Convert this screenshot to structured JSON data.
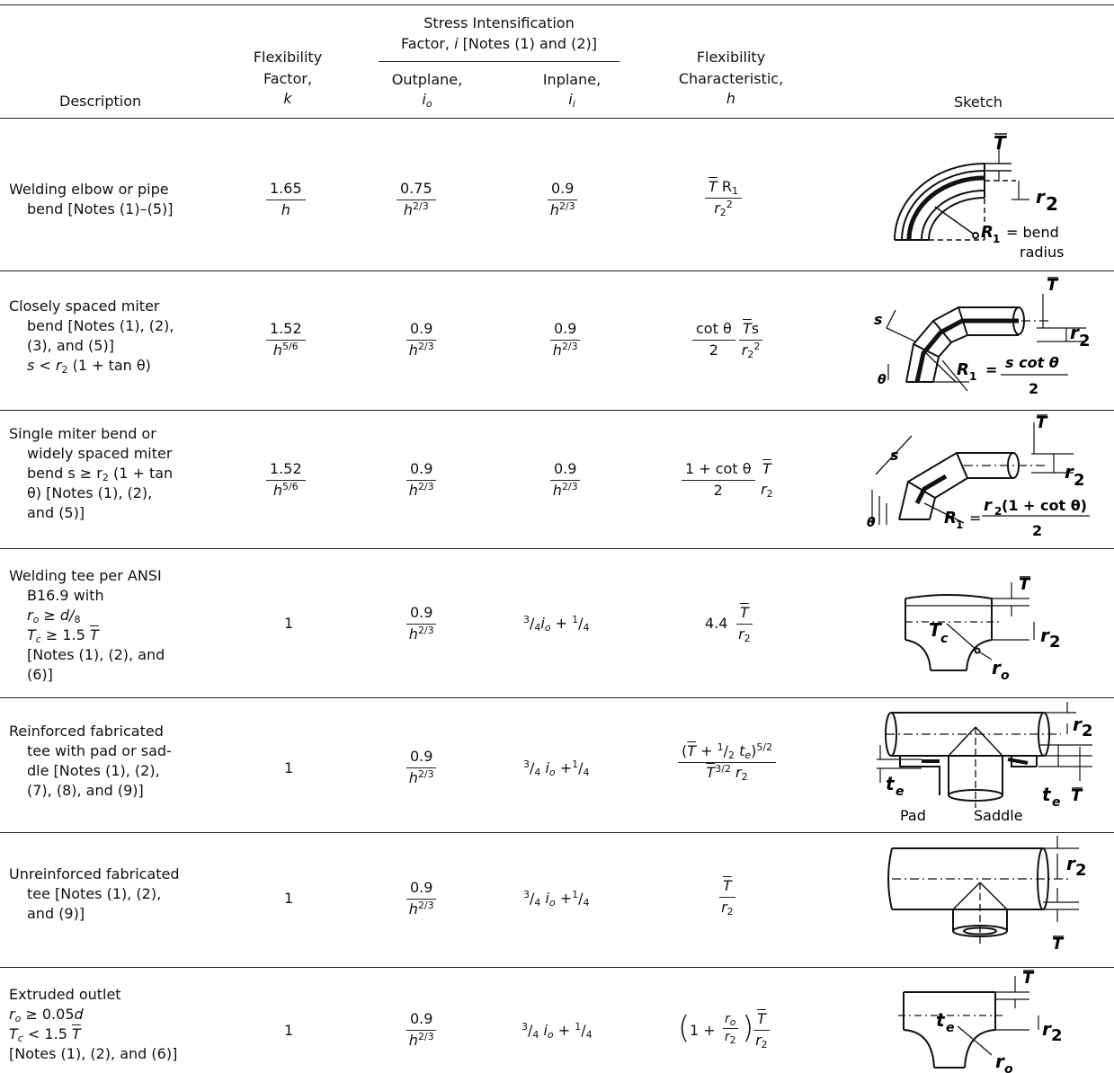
{
  "headers": {
    "description": "Description",
    "flex_factor_l1": "Flexibility",
    "flex_factor_l2": "Factor,",
    "flex_factor_sym": "k",
    "sif_l1": "Stress Intensification",
    "sif_l2_pre": "Factor, ",
    "sif_l2_sym": "i",
    "sif_l2_post": " [Notes (1) and (2)]",
    "outplane": "Outplane,",
    "outplane_sym": "i",
    "outplane_sub": "o",
    "inplane": "Inplane,",
    "inplane_sym": "i",
    "inplane_sub": "i",
    "flex_char_l1": "Flexibility",
    "flex_char_l2": "Characteristic,",
    "flex_char_sym": "h",
    "sketch": "Sketch"
  },
  "rows": [
    {
      "desc": [
        "Welding elbow or pipe",
        "bend [Notes (1)–(5)]"
      ],
      "k_num": "1.65",
      "k_den": "h",
      "io_num": "0.75",
      "io_den": "h",
      "io_exp": "2/3",
      "ii_num": "0.9",
      "ii_den": "h",
      "ii_exp": "2/3",
      "h_num_a": "T",
      "h_num_b": " R",
      "h_num_sub": "1",
      "h_den": "r",
      "h_den_sub": "2",
      "h_den_exp": "2",
      "sketch_labels": [
        "T",
        "r",
        "2",
        "R",
        "1",
        "= bend",
        "radius"
      ]
    },
    {
      "desc": [
        "Closely spaced miter",
        "bend [Notes (1), (2),",
        "(3), and (5)]",
        "s < r",
        "2",
        " (1 + tan θ)"
      ],
      "k_num": "1.52",
      "k_den": "h",
      "k_exp": "5/6",
      "io_num": "0.9",
      "io_den": "h",
      "io_exp": "2/3",
      "ii_num": "0.9",
      "ii_den": "h",
      "ii_exp": "2/3",
      "h_a_num": "cot θ",
      "h_a_den": "2",
      "h_b_num_a": "T",
      "h_b_num_b": "s",
      "h_b_den": "r",
      "h_b_den_sub": "2",
      "h_b_den_exp": "2",
      "sketch_labels": [
        "T",
        "s",
        "r",
        "2",
        "θ",
        "R",
        "1",
        "=",
        "s cot θ",
        "2"
      ]
    },
    {
      "desc": [
        "Single miter bend or",
        "widely spaced miter",
        "bend s ≥ r",
        "2",
        " (1 + tan",
        "θ) [Notes (1), (2),",
        "and (5)]"
      ],
      "k_num": "1.52",
      "k_den": "h",
      "k_exp": "5/6",
      "io_num": "0.9",
      "io_den": "h",
      "io_exp": "2/3",
      "ii_num": "0.9",
      "ii_den": "h",
      "ii_exp": "2/3",
      "h_a_num": "1 + cot θ",
      "h_a_den": "2",
      "h_b_num": "T",
      "h_b_den": "r",
      "h_b_den_sub": "2",
      "sketch_labels": [
        "T",
        "s",
        "r",
        "2",
        "θ",
        "R",
        "1",
        "=",
        "r",
        "2",
        " (1 + cot θ)",
        "2"
      ]
    },
    {
      "desc": [
        "Welding tee per ANSI",
        "B16.9 with",
        "r",
        "o",
        " ≥ d/",
        "8",
        "T",
        "c",
        " ≥ 1.5 ",
        "T",
        "[Notes (1), (2), and",
        "(6)]"
      ],
      "k": "1",
      "io_num": "0.9",
      "io_den": "h",
      "io_exp": "2/3",
      "ii": [
        "3",
        "/",
        "4",
        "i",
        "o",
        " + ",
        "1",
        "/",
        "4"
      ],
      "h_coef": "4.4",
      "h_num": "T",
      "h_den": "r",
      "h_den_sub": "2",
      "sketch_labels": [
        "T",
        "T",
        "c",
        "r",
        "2",
        "r",
        "o"
      ]
    },
    {
      "desc": [
        "Reinforced fabricated",
        "tee with pad or sad-",
        "dle [Notes (1), (2),",
        "(7), (8), and (9)]"
      ],
      "k": "1",
      "io_num": "0.9",
      "io_den": "h",
      "io_exp": "2/3",
      "ii": [
        "3",
        "/",
        "4",
        " i",
        "o",
        " +",
        "1",
        "/",
        "4"
      ],
      "h_num": [
        "(",
        "T",
        " + ",
        "1",
        "/",
        "2",
        " t",
        "e",
        ")",
        "5/2"
      ],
      "h_den": [
        "T",
        "3/2",
        " r",
        "2"
      ],
      "sketch_labels": [
        "r",
        "2",
        "t",
        "e",
        "t",
        "e",
        "T",
        "Pad",
        "Saddle"
      ]
    },
    {
      "desc": [
        "Unreinforced fabricated",
        "tee [Notes (1), (2),",
        "and (9)]"
      ],
      "k": "1",
      "io_num": "0.9",
      "io_den": "h",
      "io_exp": "2/3",
      "ii": [
        "3",
        "/",
        "4",
        " i",
        "o",
        " +",
        "1",
        "/",
        "4"
      ],
      "h_num": "T",
      "h_den": "r",
      "h_den_sub": "2",
      "sketch_labels": [
        "r",
        "2",
        "T"
      ]
    },
    {
      "desc": [
        "Extruded outlet",
        "r",
        "o",
        " ≥ 0.05",
        "d",
        "T",
        "c",
        " < 1.5 ",
        "T",
        "[Notes (1), (2), and (6)]"
      ],
      "k": "1",
      "io_num": "0.9",
      "io_den": "h",
      "io_exp": "2/3",
      "ii": [
        "3",
        "/",
        "4",
        " i",
        "o",
        " + ",
        "1",
        "/",
        "4"
      ],
      "h_pre": "1 +",
      "h_in_num": "r",
      "h_in_num_sub": "o",
      "h_in_den": "r",
      "h_in_den_sub": "2",
      "h_num": "T",
      "h_den": "r",
      "h_den_sub": "2",
      "sketch_labels": [
        "T",
        "t",
        "e",
        "r",
        "2",
        "r",
        "o"
      ]
    }
  ]
}
